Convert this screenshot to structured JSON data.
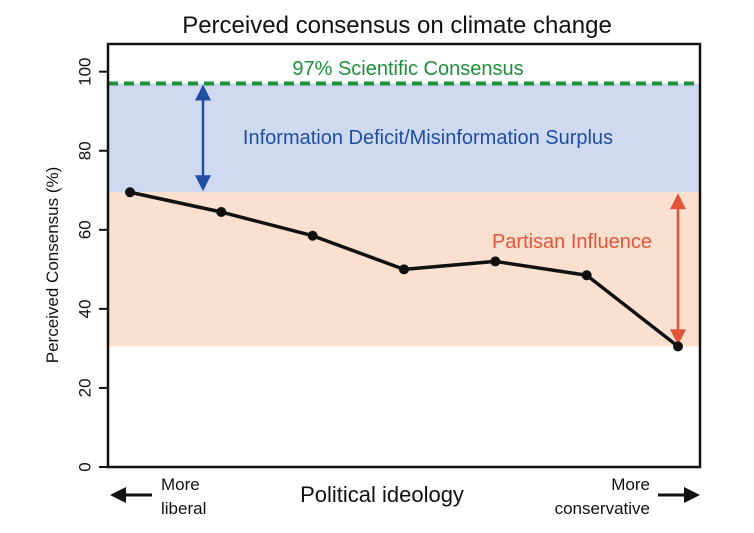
{
  "chart_data": {
    "type": "line",
    "title": "Perceived consensus on climate change",
    "xlabel": "Political ideology",
    "ylabel": "Perceived Consensus (%)",
    "ylim": [
      0,
      107
    ],
    "yticks": [
      0,
      20,
      40,
      60,
      80,
      100
    ],
    "grid": false,
    "x": [
      1,
      2,
      3,
      4,
      5,
      6,
      7
    ],
    "values": [
      69.5,
      64.5,
      58.5,
      50,
      52,
      48.5,
      30.5
    ],
    "x_left_label": [
      "More",
      "liberal"
    ],
    "x_right_label": [
      "More",
      "conservative"
    ],
    "reference_line": {
      "value": 97,
      "label": "97% Scientific Consensus",
      "color": "#1e8f3a"
    },
    "bands": [
      {
        "from": 69.5,
        "to": 97,
        "label": "Information Deficit/Misinformation Surplus",
        "fill": "#cfdaf1",
        "text_color": "#1f4fa3"
      },
      {
        "from": 30.5,
        "to": 69.5,
        "label": "Partisan Influence",
        "fill": "#fbe0cf",
        "text_color": "#e2553a"
      }
    ],
    "line_color": "#111111"
  }
}
